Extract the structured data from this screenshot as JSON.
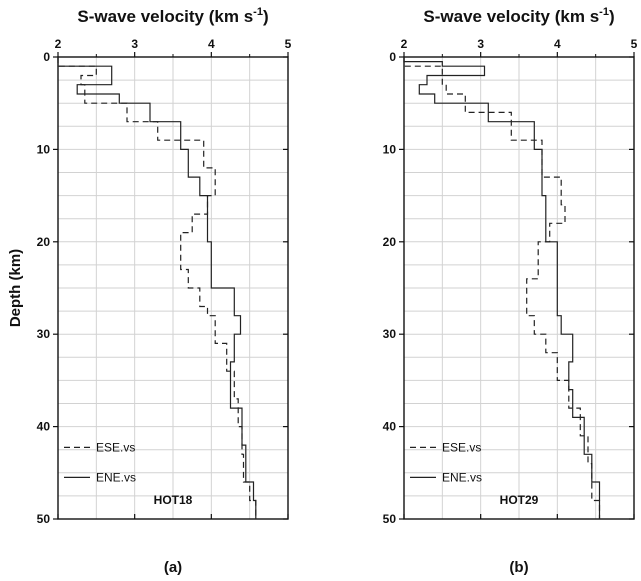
{
  "chart_data": [
    {
      "type": "line",
      "panel_label": "(a)",
      "title": "S-wave velocity (km s",
      "title_sup": "-1",
      "title_close": ")",
      "ylabel": "Depth (km)",
      "xlim": [
        2,
        5
      ],
      "ylim": [
        0,
        50
      ],
      "y_inverted": true,
      "xticks": [
        "2",
        "3",
        "4",
        "5"
      ],
      "yticks": [
        "0",
        "10",
        "20",
        "30",
        "40",
        "50"
      ],
      "grid": true,
      "legend_position": "bottom-left",
      "annotation": "HOT18",
      "series": [
        {
          "name": "ESE.vs",
          "style": "dashed",
          "x": [
            2.0,
            2.0,
            2.5,
            2.5,
            2.3,
            2.3,
            2.35,
            2.35,
            2.9,
            2.9,
            3.3,
            3.3,
            3.9,
            3.9,
            4.05,
            4.05,
            3.95,
            3.95,
            3.75,
            3.75,
            3.6,
            3.6,
            3.7,
            3.7,
            3.85,
            3.85,
            3.95,
            3.95,
            4.05,
            4.05,
            4.2,
            4.2,
            4.3,
            4.3,
            4.35,
            4.35,
            4.4,
            4.4,
            4.42,
            4.42,
            4.5,
            4.5,
            4.58,
            4.58
          ],
          "y": [
            0,
            1,
            1,
            2,
            2,
            3,
            3,
            5,
            5,
            7,
            7,
            9,
            9,
            12,
            12,
            15,
            15,
            17,
            17,
            19,
            19,
            23,
            23,
            25,
            25,
            27,
            27,
            28,
            28,
            31,
            31,
            34,
            34,
            37,
            37,
            40,
            40,
            43,
            43,
            46,
            46,
            48,
            48,
            50
          ]
        },
        {
          "name": "ENE.vs",
          "style": "solid",
          "x": [
            2.0,
            2.0,
            2.7,
            2.7,
            2.25,
            2.25,
            2.8,
            2.8,
            3.2,
            3.2,
            3.6,
            3.6,
            3.7,
            3.7,
            3.85,
            3.85,
            3.95,
            3.95,
            4.0,
            4.0,
            4.3,
            4.3,
            4.38,
            4.38,
            4.3,
            4.3,
            4.25,
            4.25,
            4.4,
            4.4,
            4.45,
            4.45,
            4.55,
            4.55,
            4.58,
            4.58
          ],
          "y": [
            0,
            1,
            1,
            3,
            3,
            4,
            4,
            5,
            5,
            7,
            7,
            10,
            10,
            13,
            13,
            15,
            15,
            20,
            20,
            25,
            25,
            28,
            28,
            30,
            30,
            33,
            33,
            38,
            38,
            42,
            42,
            46,
            46,
            48,
            48,
            50
          ]
        }
      ]
    },
    {
      "type": "line",
      "panel_label": "(b)",
      "title": "S-wave velocity (km s",
      "title_sup": "-1",
      "title_close": ")",
      "xlim": [
        2,
        5
      ],
      "ylim": [
        0,
        50
      ],
      "y_inverted": true,
      "xticks": [
        "2",
        "3",
        "4",
        "5"
      ],
      "yticks": [
        "0",
        "10",
        "20",
        "30",
        "40",
        "50"
      ],
      "grid": true,
      "legend_position": "bottom-left",
      "annotation": "HOT29",
      "series": [
        {
          "name": "ESE.vs",
          "style": "dashed",
          "x": [
            2.0,
            2.0,
            2.5,
            2.5,
            2.55,
            2.55,
            2.8,
            2.8,
            3.4,
            3.4,
            3.8,
            3.8,
            4.05,
            4.05,
            4.1,
            4.1,
            3.9,
            3.9,
            3.75,
            3.75,
            3.6,
            3.6,
            3.7,
            3.7,
            3.85,
            3.85,
            4.0,
            4.0,
            4.15,
            4.15,
            4.3,
            4.3,
            4.4,
            4.4,
            4.45,
            4.45,
            4.55,
            4.55
          ],
          "y": [
            0,
            1,
            1,
            3,
            3,
            4,
            4,
            6,
            6,
            9,
            9,
            13,
            13,
            16,
            16,
            18,
            18,
            20,
            20,
            24,
            24,
            28,
            28,
            30,
            30,
            32,
            32,
            35,
            35,
            38,
            38,
            41,
            41,
            44,
            44,
            48,
            48,
            50
          ]
        },
        {
          "name": "ENE.vs",
          "style": "solid",
          "x": [
            2.0,
            2.0,
            2.5,
            2.5,
            3.05,
            3.05,
            2.3,
            2.3,
            2.2,
            2.2,
            2.4,
            2.4,
            3.1,
            3.1,
            3.7,
            3.7,
            3.8,
            3.8,
            3.85,
            3.85,
            4.0,
            4.0,
            4.05,
            4.05,
            4.2,
            4.2,
            4.15,
            4.15,
            4.2,
            4.2,
            4.35,
            4.35,
            4.45,
            4.45,
            4.55,
            4.55
          ],
          "y": [
            0,
            0.5,
            0.5,
            1,
            1,
            2,
            2,
            3,
            3,
            4,
            4,
            5,
            5,
            7,
            7,
            10,
            10,
            15,
            15,
            20,
            20,
            28,
            28,
            30,
            30,
            33,
            33,
            36,
            36,
            39,
            39,
            43,
            43,
            46,
            46,
            50
          ]
        }
      ]
    }
  ]
}
